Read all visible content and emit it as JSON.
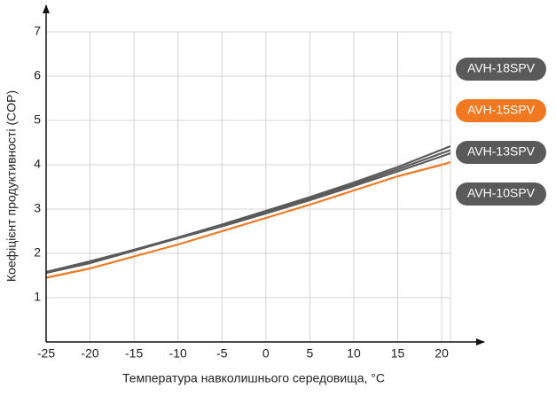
{
  "chart_data": {
    "type": "line",
    "xlabel": "Температура навколишнього середовища, °C",
    "ylabel": "Коефіцієнт продуктивності (COP)",
    "x": [
      -25,
      -20,
      -15,
      -10,
      -5,
      0,
      5,
      10,
      15,
      20,
      21
    ],
    "series": [
      {
        "name": "AVH-18SPV",
        "color": "#5a5a5a",
        "values": [
          1.58,
          1.82,
          2.08,
          2.36,
          2.65,
          2.96,
          3.27,
          3.6,
          3.95,
          4.34,
          4.42
        ]
      },
      {
        "name": "AVH-15SPV",
        "color": "#f07820",
        "values": [
          1.45,
          1.66,
          1.93,
          2.2,
          2.5,
          2.8,
          3.1,
          3.42,
          3.74,
          4.0,
          4.06
        ]
      },
      {
        "name": "AVH-13SPV",
        "color": "#5a5a5a",
        "values": [
          1.57,
          1.8,
          2.07,
          2.35,
          2.63,
          2.93,
          3.24,
          3.56,
          3.9,
          4.26,
          4.33
        ]
      },
      {
        "name": "AVH-10SPV",
        "color": "#5a5a5a",
        "values": [
          1.56,
          1.78,
          2.06,
          2.34,
          2.61,
          2.9,
          3.2,
          3.52,
          3.85,
          4.19,
          4.26
        ]
      }
    ],
    "xlim": [
      -25,
      21
    ],
    "xticks": [
      -25,
      -20,
      -15,
      -10,
      -5,
      0,
      5,
      10,
      15,
      20
    ],
    "ylim": [
      0,
      7
    ],
    "yticks": [
      1,
      2,
      3,
      4,
      5,
      6,
      7
    ],
    "grid": true,
    "legend": "right"
  }
}
